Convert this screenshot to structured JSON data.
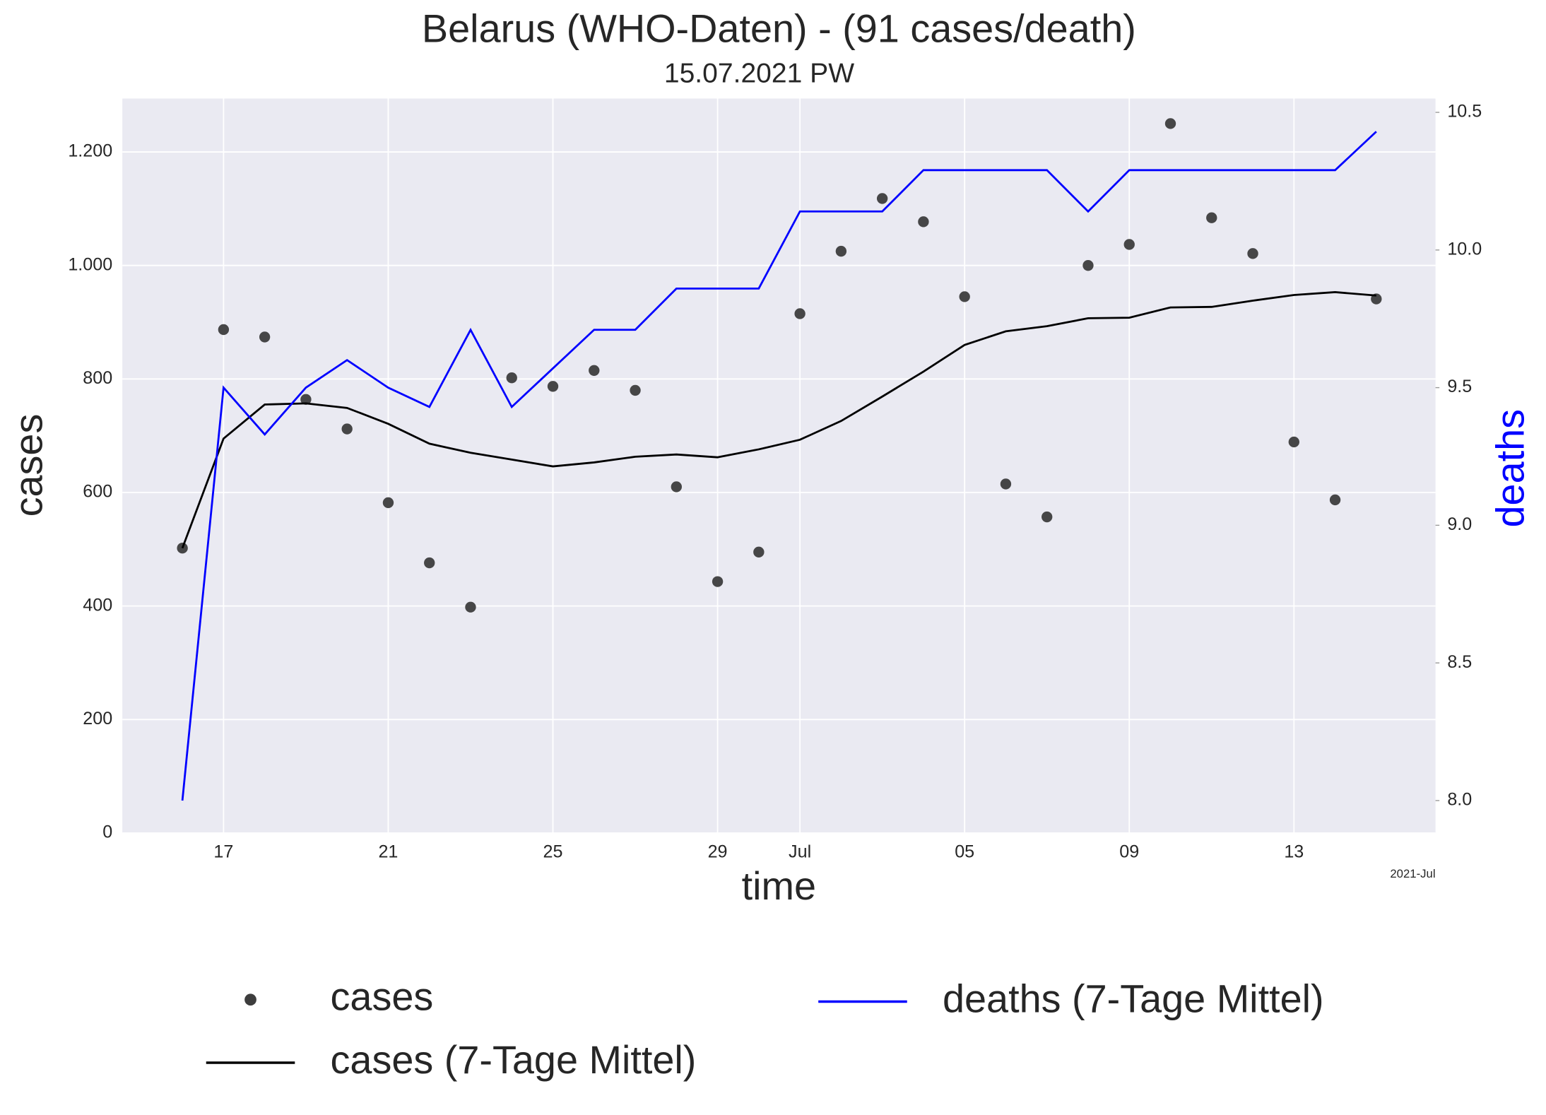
{
  "chart_data": {
    "type": "line",
    "title": "Belarus (WHO-Daten) - (91 cases/death)",
    "subtitle": "15.07.2021 PW",
    "x_label": "time",
    "y_label": "cases",
    "y2_label": "deaths",
    "x_offset_label": "2021-Jul",
    "x": [
      "2021-06-16",
      "2021-06-17",
      "2021-06-18",
      "2021-06-19",
      "2021-06-20",
      "2021-06-21",
      "2021-06-22",
      "2021-06-23",
      "2021-06-24",
      "2021-06-25",
      "2021-06-26",
      "2021-06-27",
      "2021-06-28",
      "2021-06-29",
      "2021-06-30",
      "2021-07-01",
      "2021-07-02",
      "2021-07-03",
      "2021-07-04",
      "2021-07-05",
      "2021-07-06",
      "2021-07-07",
      "2021-07-08",
      "2021-07-09",
      "2021-07-10",
      "2021-07-11",
      "2021-07-12",
      "2021-07-13",
      "2021-07-14",
      "2021-07-15"
    ],
    "xlim": [
      "2021-06-14T13:00:00Z",
      "2021-07-16T10:30:00Z"
    ],
    "xticks": [
      {
        "value": "2021-06-17",
        "label": "17"
      },
      {
        "value": "2021-06-21",
        "label": "21"
      },
      {
        "value": "2021-06-25",
        "label": "25"
      },
      {
        "value": "2021-06-29",
        "label": "29"
      },
      {
        "value": "2021-07-01",
        "label": "Jul"
      },
      {
        "value": "2021-07-05",
        "label": "05"
      },
      {
        "value": "2021-07-09",
        "label": "09"
      },
      {
        "value": "2021-07-13",
        "label": "13"
      }
    ],
    "ylim": [
      0,
      1294
    ],
    "yticks": [
      0,
      200,
      400,
      600,
      800,
      {
        "value": 1000,
        "label": "1.000"
      },
      {
        "value": 1200,
        "label": "1.200"
      }
    ],
    "y2lim": [
      7.882,
      10.55
    ],
    "y2ticks": [
      {
        "value": 8,
        "label": "8.0"
      },
      8.5,
      {
        "value": 9,
        "label": "9.0"
      },
      9.5,
      {
        "value": 10,
        "label": "10.0"
      },
      10.5
    ],
    "grid": true,
    "legend": "bottom",
    "series": [
      {
        "name": "cases",
        "type": "scatter",
        "color": "#3d3d3d",
        "values": [
          502,
          887,
          874,
          764,
          712,
          582,
          476,
          398,
          802,
          787,
          815,
          780,
          610,
          443,
          495,
          915,
          1025,
          1118,
          1077,
          945,
          615,
          557,
          1000,
          1037,
          1250,
          1084,
          1021,
          689,
          587,
          941
        ]
      },
      {
        "name": "cases (7-Tage Mittel)",
        "type": "line",
        "color": "#000000",
        "values": [
          502,
          695,
          755,
          757,
          749,
          721,
          686,
          670,
          658,
          646,
          653,
          663,
          667,
          662,
          676,
          693,
          726,
          769,
          813,
          860,
          884,
          893,
          907,
          908,
          926,
          927,
          938,
          948,
          953,
          947
        ]
      },
      {
        "name": "deaths (7-Tage Mittel)",
        "type": "line",
        "color": "#0000ff",
        "axis": "y2",
        "values": [
          8.0,
          9.5,
          9.33,
          9.5,
          9.6,
          9.5,
          9.43,
          9.71,
          9.43,
          9.57,
          9.71,
          9.71,
          9.86,
          9.86,
          9.86,
          10.14,
          10.14,
          10.14,
          10.29,
          10.29,
          10.29,
          10.29,
          10.14,
          10.29,
          10.29,
          10.29,
          10.29,
          10.29,
          10.29,
          10.43
        ]
      }
    ]
  }
}
